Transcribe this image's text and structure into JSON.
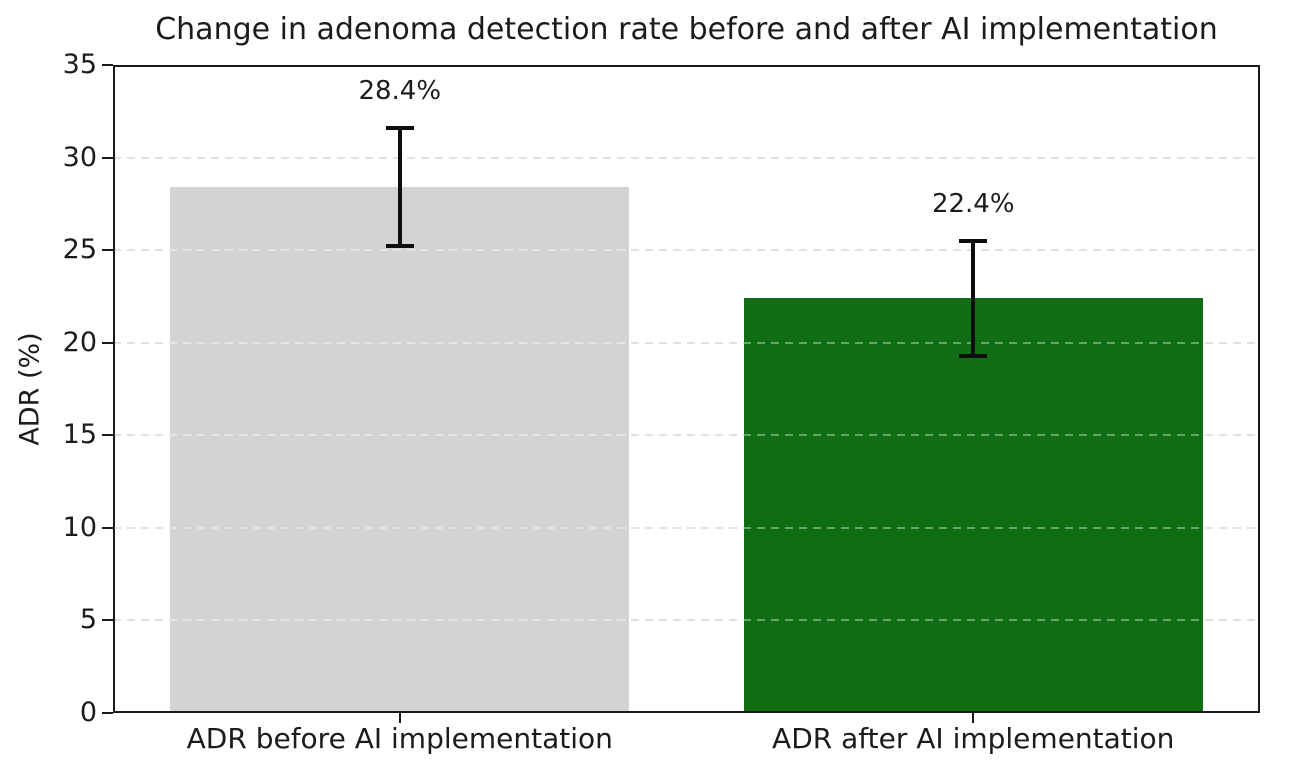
{
  "chart_data": {
    "type": "bar",
    "title": "Change in adenoma detection rate before and after AI implementation",
    "xlabel": "",
    "ylabel": "ADR (%)",
    "categories": [
      "ADR before AI implementation",
      "ADR after AI implementation"
    ],
    "values": [
      28.4,
      22.4
    ],
    "errors": [
      3.2,
      3.1
    ],
    "value_labels": [
      "28.4%",
      "22.4%"
    ],
    "bar_colors": [
      "#d3d3d3",
      "#0f6d13"
    ],
    "ylim": [
      0,
      35
    ],
    "yticks": [
      0,
      5,
      10,
      15,
      20,
      25,
      30,
      35
    ],
    "grid": "horizontal-dashed",
    "legend_position": "none",
    "bar_width_fraction": 0.8
  },
  "colors": {
    "bar_before": "#d3d3d3",
    "bar_after": "#0f6d13",
    "error_bar": "#0d0d0d",
    "gridline": "#d1d1d1",
    "axis": "#1a1a1a",
    "background": "#ffffff",
    "text": "#1c1c1c"
  }
}
